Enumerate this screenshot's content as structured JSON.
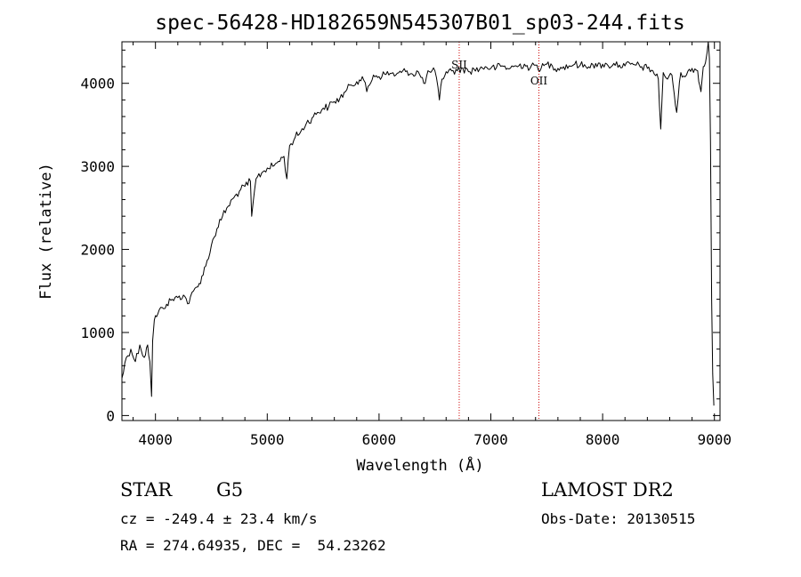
{
  "chart_data": {
    "type": "line",
    "title": "spec-56428-HD182659N545307B01_sp03-244.fits",
    "xlabel": "Wavelength (Å)",
    "ylabel": "Flux (relative)",
    "xlim": [
      3700,
      9050
    ],
    "ylim": [
      -60,
      4500
    ],
    "x_ticks": [
      4000,
      5000,
      6000,
      7000,
      8000,
      9000
    ],
    "x_tick_labels": [
      "4000",
      "5000",
      "6000",
      "7000",
      "8000",
      "9000"
    ],
    "y_ticks": [
      0,
      1000,
      2000,
      3000,
      4000
    ],
    "y_tick_labels": [
      "0",
      "1000",
      "2000",
      "3000",
      "4000"
    ],
    "grid": false,
    "series": [
      {
        "x": [
          3700,
          3740,
          3780,
          3820,
          3860,
          3900,
          3930,
          3950,
          3965,
          3975,
          3990,
          4020,
          4060,
          4100,
          4150,
          4200,
          4250,
          4300,
          4340,
          4380,
          4450,
          4500,
          4550,
          4600,
          4650,
          4700,
          4750,
          4800,
          4850,
          4861,
          4900,
          4950,
          5000,
          5050,
          5100,
          5150,
          5175,
          5200,
          5250,
          5300,
          5350,
          5400,
          5450,
          5500,
          5550,
          5600,
          5650,
          5700,
          5750,
          5800,
          5850,
          5890,
          5950,
          6000,
          6050,
          6100,
          6150,
          6200,
          6250,
          6300,
          6350,
          6400,
          6450,
          6500,
          6540,
          6563,
          6600,
          6650,
          6700,
          6750,
          6800,
          6850,
          6900,
          6950,
          7000,
          7050,
          7100,
          7150,
          7200,
          7250,
          7300,
          7350,
          7400,
          7450,
          7500,
          7550,
          7600,
          7650,
          7700,
          7750,
          7800,
          7850,
          7900,
          7950,
          8000,
          8050,
          8100,
          8150,
          8200,
          8250,
          8300,
          8350,
          8400,
          8450,
          8498,
          8520,
          8542,
          8580,
          8620,
          8662,
          8700,
          8750,
          8800,
          8850,
          8880,
          8900,
          8920,
          8935,
          8945,
          8955,
          8965,
          8975,
          8985,
          8995
        ],
        "y": [
          450,
          700,
          800,
          650,
          850,
          700,
          850,
          650,
          230,
          900,
          1150,
          1220,
          1300,
          1340,
          1400,
          1420,
          1450,
          1350,
          1500,
          1550,
          1800,
          2050,
          2250,
          2400,
          2520,
          2620,
          2700,
          2760,
          2820,
          2400,
          2850,
          2920,
          2980,
          3000,
          3060,
          3120,
          2850,
          3250,
          3350,
          3420,
          3520,
          3580,
          3650,
          3700,
          3720,
          3780,
          3820,
          3900,
          3980,
          4020,
          4080,
          3900,
          4100,
          4080,
          4110,
          4120,
          4100,
          4130,
          4150,
          4110,
          4140,
          4000,
          4140,
          4150,
          3800,
          4050,
          4140,
          4150,
          4150,
          4180,
          4140,
          4170,
          4170,
          4200,
          4180,
          4190,
          4210,
          4180,
          4200,
          4210,
          4230,
          4180,
          4220,
          4180,
          4230,
          4210,
          4180,
          4200,
          4210,
          4230,
          4220,
          4200,
          4240,
          4200,
          4230,
          4210,
          4240,
          4220,
          4210,
          4230,
          4220,
          4200,
          4180,
          4150,
          4050,
          3450,
          4130,
          4050,
          4100,
          3650,
          4130,
          4100,
          4180,
          4150,
          3900,
          4200,
          4250,
          4380,
          4500,
          4300,
          3300,
          1400,
          500,
          120
        ]
      }
    ],
    "annotations": [
      {
        "label": "SII",
        "x": 6717
      },
      {
        "label": "OII",
        "x": 7430
      }
    ]
  },
  "info": {
    "object_type": "STAR",
    "subclass": "G5",
    "redshift": "cz = -249.4 ± 23.4 km/s",
    "coords": "RA = 274.64935, DEC =  54.23262",
    "survey": "LAMOST DR2",
    "obs_date": "Obs-Date: 20130515"
  },
  "colors": {
    "spectrum": "#000000",
    "line_markers": "#cc0000",
    "axes": "#000000",
    "background": "#ffffff"
  }
}
